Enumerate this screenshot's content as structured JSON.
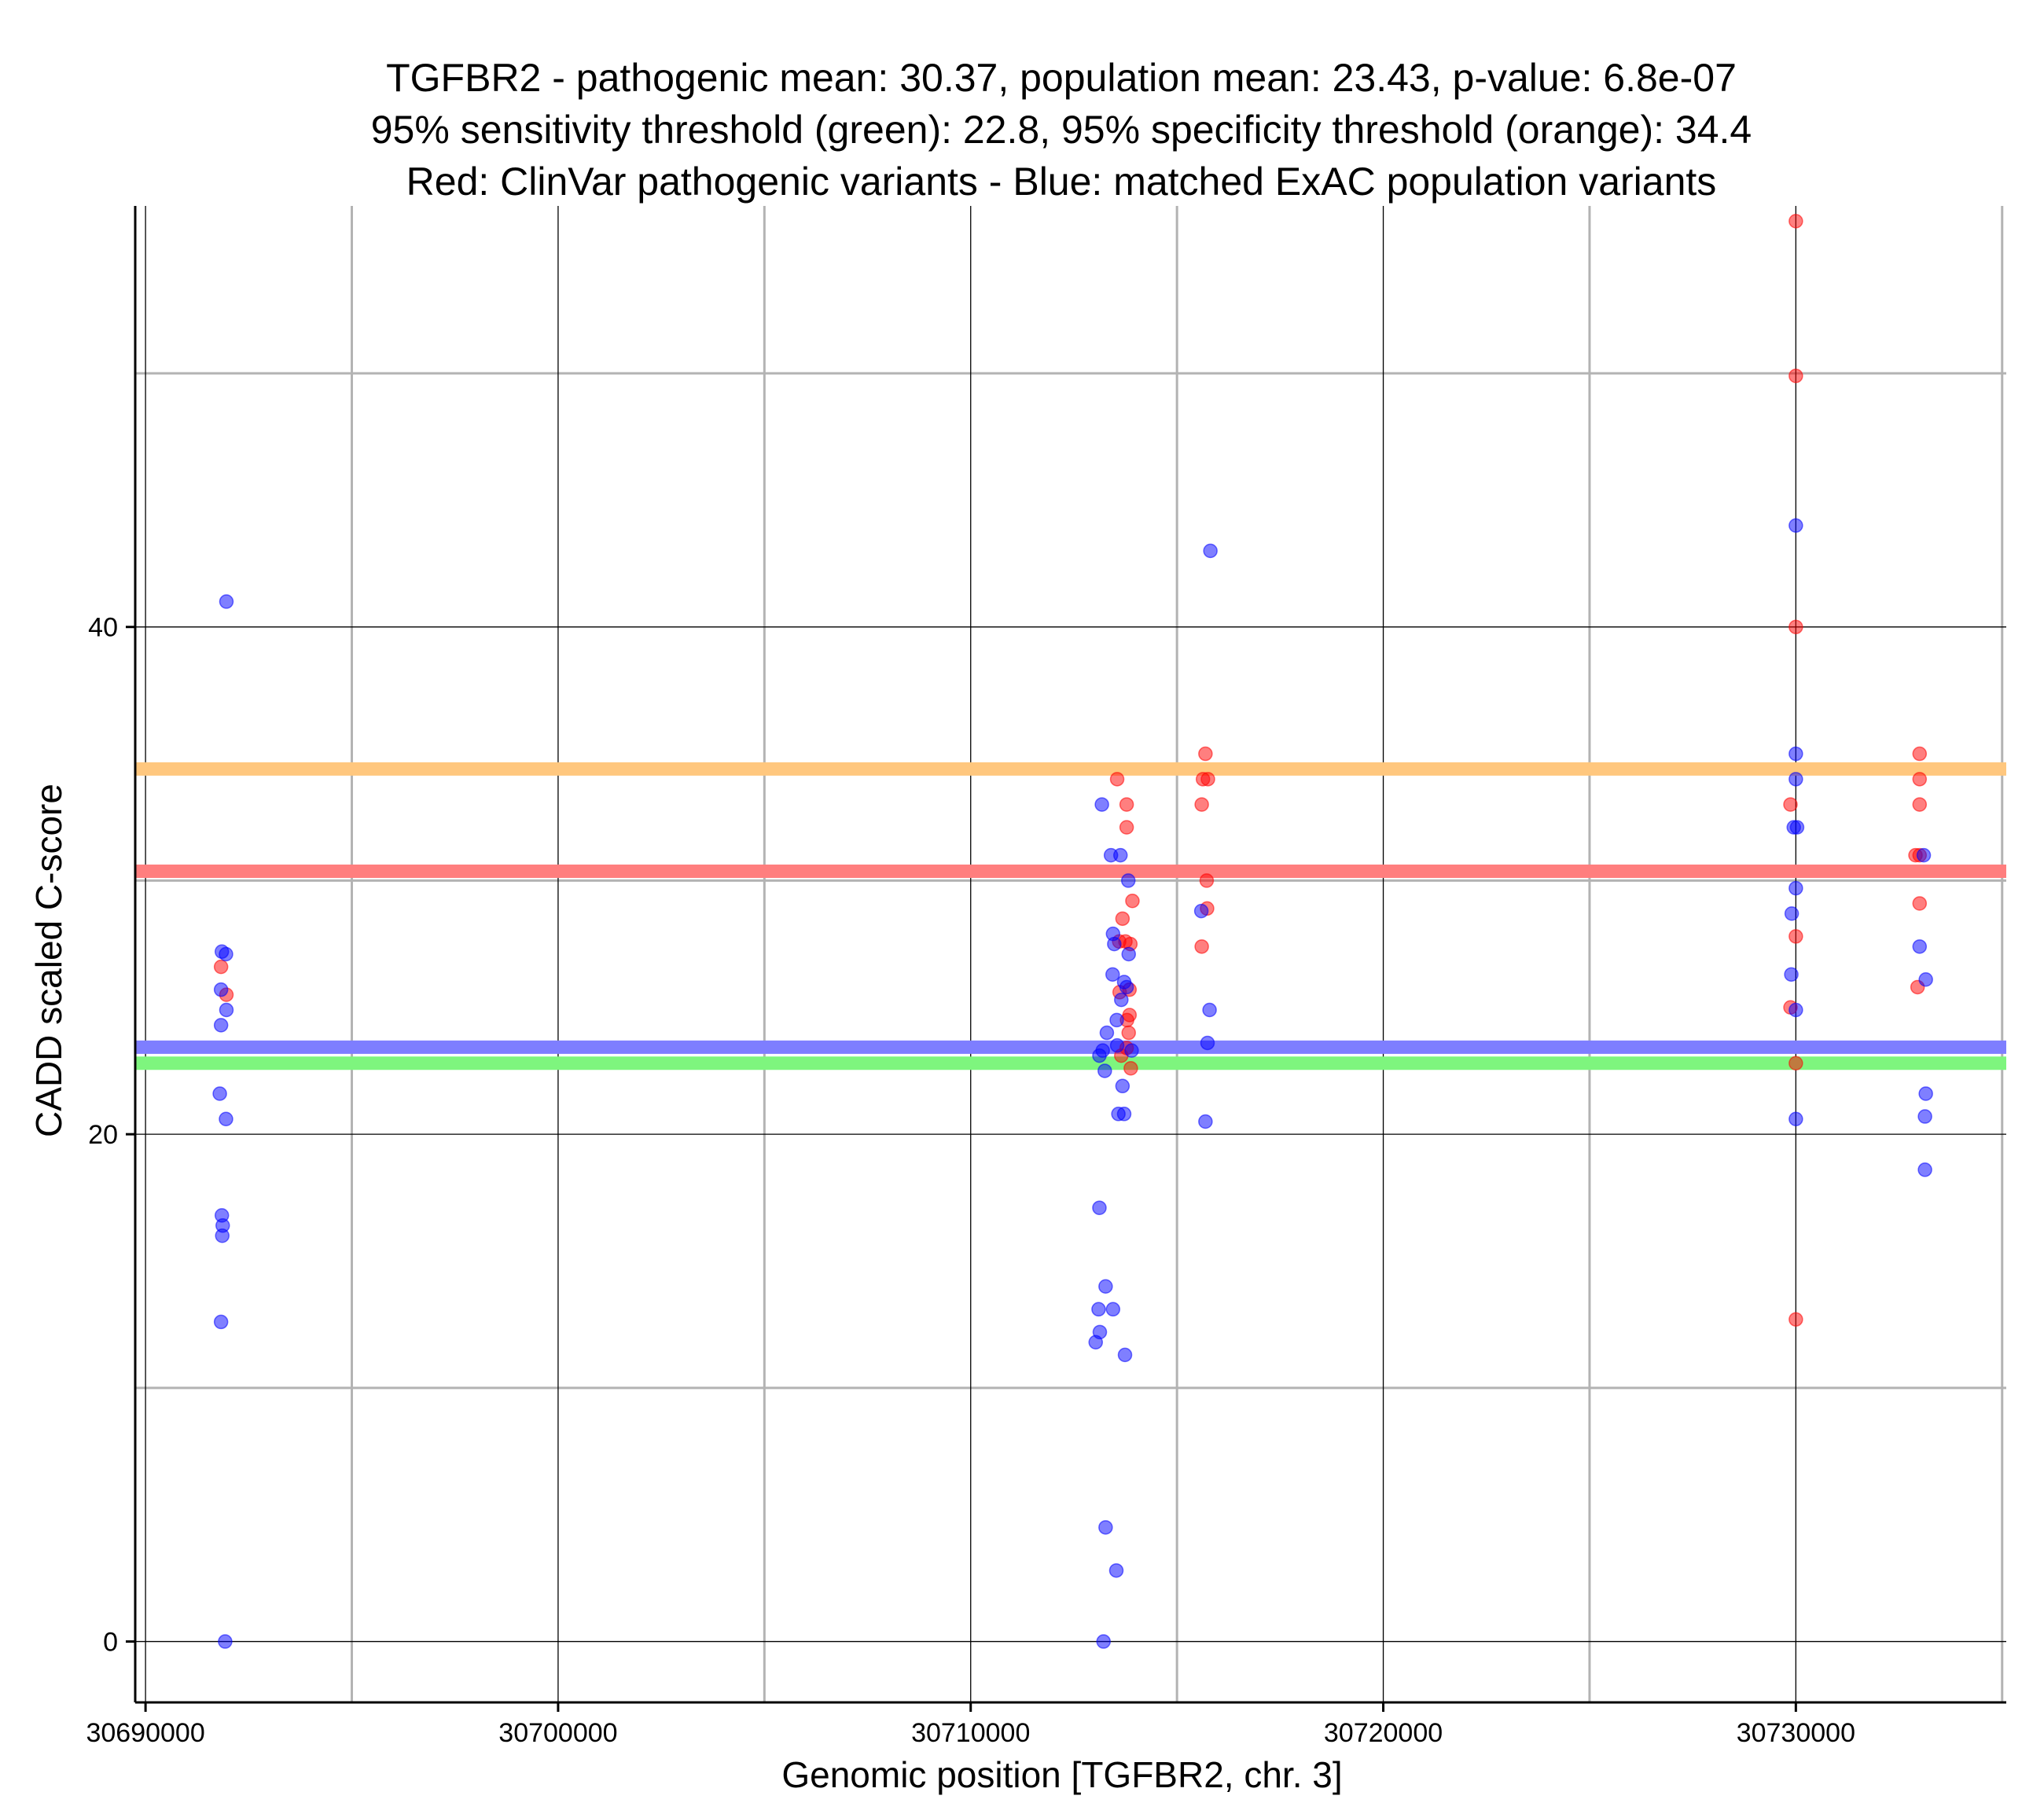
{
  "chart_data": {
    "type": "scatter",
    "title_lines": [
      "TGFBR2 - pathogenic mean: 30.37, population mean: 23.43, p-value: 6.8e-07",
      "95% sensitivity threshold (green): 22.8, 95% specificity threshold (orange): 34.4",
      "Red: ClinVar pathogenic variants - Blue: matched ExAC population variants"
    ],
    "xlabel": "Genomic position [TGFBR2, chr. 3]",
    "ylabel": "CADD scaled C-score",
    "xlim": [
      30689750,
      30735100
    ],
    "ylim": [
      -2.4,
      56.6
    ],
    "x_major_ticks": [
      30690000,
      30700000,
      30710000,
      30720000,
      30730000
    ],
    "x_minor_ticks": [
      30695000,
      30705000,
      30715000,
      30725000,
      30735000
    ],
    "y_major_ticks": [
      0,
      20,
      40
    ],
    "y_minor_ticks": [
      10,
      30,
      50
    ],
    "x_tick_labels": [
      "30690000",
      "30700000",
      "30710000",
      "30720000",
      "30730000"
    ],
    "y_tick_labels": [
      "0",
      "20",
      "40"
    ],
    "grid": true,
    "colors": {
      "pathogenic": "#ff0000",
      "population": "#0000ff",
      "sensitivity_line": "#7ef57e",
      "specificity_line": "#ffc77e",
      "pathogenic_mean_line": "#ff7e7e",
      "population_mean_line": "#7e7eff",
      "major_grid": "#000000",
      "minor_grid": "#b3b3b3"
    },
    "hlines": [
      {
        "name": "95% specificity threshold",
        "y": 34.4,
        "color": "#ffc77e"
      },
      {
        "name": "pathogenic mean",
        "y": 30.37,
        "color": "#ff7e7e"
      },
      {
        "name": "population mean",
        "y": 23.43,
        "color": "#7e7eff"
      },
      {
        "name": "95% sensitivity threshold",
        "y": 22.8,
        "color": "#7ef57e"
      }
    ],
    "series": [
      {
        "name": "ClinVar pathogenic variants",
        "color": "#ff0000",
        "points": [
          [
            30691830,
            26.6
          ],
          [
            30691960,
            25.5
          ],
          [
            30713550,
            34.0
          ],
          [
            30713780,
            33.0
          ],
          [
            30713780,
            32.1
          ],
          [
            30713920,
            29.2
          ],
          [
            30713680,
            28.5
          ],
          [
            30713600,
            27.6
          ],
          [
            30713750,
            27.6
          ],
          [
            30713870,
            27.5
          ],
          [
            30713610,
            25.6
          ],
          [
            30713850,
            25.7
          ],
          [
            30713850,
            24.7
          ],
          [
            30713790,
            24.5
          ],
          [
            30713830,
            24.0
          ],
          [
            30713780,
            23.4
          ],
          [
            30713650,
            23.1
          ],
          [
            30713880,
            22.6
          ],
          [
            30715630,
            34.0
          ],
          [
            30715750,
            34.0
          ],
          [
            30715690,
            35.0
          ],
          [
            30715600,
            33.0
          ],
          [
            30715720,
            30.0
          ],
          [
            30715730,
            28.9
          ],
          [
            30715600,
            27.4
          ],
          [
            30730000,
            56.0
          ],
          [
            30730000,
            49.9
          ],
          [
            30730000,
            40.0
          ],
          [
            30729870,
            33.0
          ],
          [
            30730000,
            27.8
          ],
          [
            30729870,
            25.0
          ],
          [
            30730000,
            22.8
          ],
          [
            30730000,
            12.7
          ],
          [
            30733000,
            35.0
          ],
          [
            30733000,
            34.0
          ],
          [
            30733000,
            33.0
          ],
          [
            30732900,
            31.0
          ],
          [
            30733000,
            31.0
          ],
          [
            30733000,
            29.1
          ],
          [
            30732950,
            25.8
          ]
        ]
      },
      {
        "name": "matched ExAC population variants",
        "color": "#0000ff",
        "points": [
          [
            30691960,
            41.0
          ],
          [
            30691850,
            27.2
          ],
          [
            30691950,
            27.1
          ],
          [
            30691830,
            25.7
          ],
          [
            30691960,
            24.9
          ],
          [
            30691830,
            24.3
          ],
          [
            30691800,
            21.6
          ],
          [
            30691950,
            20.6
          ],
          [
            30691850,
            16.8
          ],
          [
            30691870,
            16.4
          ],
          [
            30691860,
            16.0
          ],
          [
            30691830,
            12.6
          ],
          [
            30691930,
            0.0
          ],
          [
            30713180,
            33.0
          ],
          [
            30713400,
            31.0
          ],
          [
            30713630,
            31.0
          ],
          [
            30713820,
            30.0
          ],
          [
            30713450,
            27.9
          ],
          [
            30713480,
            27.5
          ],
          [
            30713830,
            27.1
          ],
          [
            30713440,
            26.3
          ],
          [
            30713720,
            26.0
          ],
          [
            30713780,
            25.8
          ],
          [
            30713650,
            25.3
          ],
          [
            30713540,
            24.5
          ],
          [
            30713300,
            24.0
          ],
          [
            30713550,
            23.5
          ],
          [
            30713900,
            23.3
          ],
          [
            30713200,
            23.3
          ],
          [
            30713120,
            23.1
          ],
          [
            30713250,
            22.5
          ],
          [
            30713680,
            21.9
          ],
          [
            30713580,
            20.8
          ],
          [
            30713720,
            20.8
          ],
          [
            30713120,
            17.1
          ],
          [
            30713270,
            14.0
          ],
          [
            30713100,
            13.1
          ],
          [
            30713450,
            13.1
          ],
          [
            30713130,
            12.2
          ],
          [
            30713030,
            11.8
          ],
          [
            30713740,
            11.3
          ],
          [
            30713270,
            4.5
          ],
          [
            30713530,
            2.8
          ],
          [
            30713220,
            0.0
          ],
          [
            30715810,
            43.0
          ],
          [
            30715590,
            28.8
          ],
          [
            30715790,
            24.9
          ],
          [
            30715740,
            23.6
          ],
          [
            30715690,
            20.5
          ],
          [
            30730000,
            44.0
          ],
          [
            30730000,
            35.0
          ],
          [
            30730000,
            34.0
          ],
          [
            30729950,
            32.1
          ],
          [
            30730030,
            32.1
          ],
          [
            30730000,
            29.7
          ],
          [
            30729900,
            28.7
          ],
          [
            30729890,
            26.3
          ],
          [
            30730000,
            24.9
          ],
          [
            30730000,
            20.6
          ],
          [
            30733100,
            31.0
          ],
          [
            30733000,
            27.4
          ],
          [
            30733150,
            26.1
          ],
          [
            30733150,
            21.6
          ],
          [
            30733130,
            20.7
          ],
          [
            30733130,
            18.6
          ]
        ]
      }
    ]
  }
}
